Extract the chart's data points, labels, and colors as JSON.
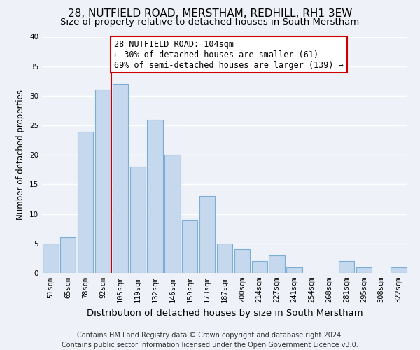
{
  "title": "28, NUTFIELD ROAD, MERSTHAM, REDHILL, RH1 3EW",
  "subtitle": "Size of property relative to detached houses in South Merstham",
  "xlabel": "Distribution of detached houses by size in South Merstham",
  "ylabel": "Number of detached properties",
  "categories": [
    "51sqm",
    "65sqm",
    "78sqm",
    "92sqm",
    "105sqm",
    "119sqm",
    "132sqm",
    "146sqm",
    "159sqm",
    "173sqm",
    "187sqm",
    "200sqm",
    "214sqm",
    "227sqm",
    "241sqm",
    "254sqm",
    "268sqm",
    "281sqm",
    "295sqm",
    "308sqm",
    "322sqm"
  ],
  "values": [
    5,
    6,
    24,
    31,
    32,
    18,
    26,
    20,
    9,
    13,
    5,
    4,
    2,
    3,
    1,
    0,
    0,
    2,
    1,
    0,
    1
  ],
  "bar_color": "#c5d8ed",
  "bar_edge_color": "#7aaed6",
  "highlight_line_color": "#cc0000",
  "highlight_line_index": 4,
  "ylim": [
    0,
    40
  ],
  "yticks": [
    0,
    5,
    10,
    15,
    20,
    25,
    30,
    35,
    40
  ],
  "annotation_text": "28 NUTFIELD ROAD: 104sqm\n← 30% of detached houses are smaller (61)\n69% of semi-detached houses are larger (139) →",
  "annotation_box_facecolor": "#ffffff",
  "annotation_box_edgecolor": "#cc0000",
  "footer_line1": "Contains HM Land Registry data © Crown copyright and database right 2024.",
  "footer_line2": "Contains public sector information licensed under the Open Government Licence v3.0.",
  "background_color": "#eef2f8",
  "grid_color": "#ffffff",
  "title_fontsize": 11,
  "subtitle_fontsize": 9.5,
  "xlabel_fontsize": 9.5,
  "ylabel_fontsize": 8.5,
  "tick_fontsize": 7.5,
  "annotation_fontsize": 8.5,
  "footer_fontsize": 7
}
